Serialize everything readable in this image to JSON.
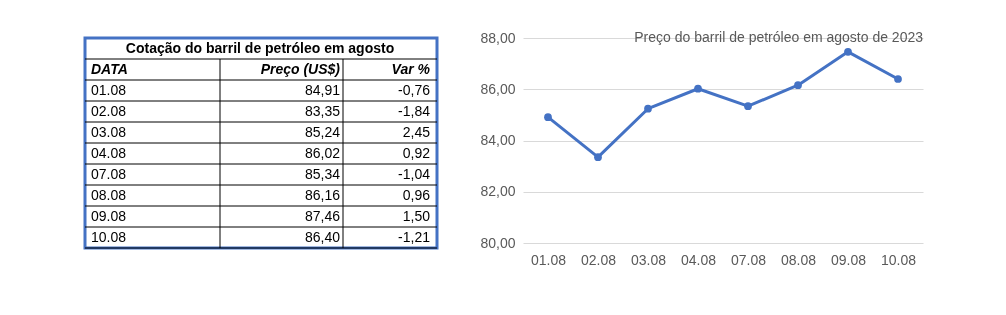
{
  "chart_data": [
    {
      "type": "other",
      "title": "Cotação do barril de petróleo em agosto",
      "xlabel": "DATA",
      "categories": [
        "01.08",
        "02.08",
        "03.08",
        "04.08",
        "07.08",
        "08.08",
        "09.08",
        "10.08"
      ],
      "series": [
        {
          "name": "Preço (US$)",
          "values": [
            84.91,
            83.35,
            85.24,
            86.02,
            85.34,
            86.16,
            87.46,
            86.4
          ],
          "value_labels": [
            "84,91",
            "83,35",
            "85,24",
            "86,02",
            "85,34",
            "86,16",
            "87,46",
            "86,40"
          ]
        },
        {
          "name": "Var %",
          "values": [
            -0.76,
            -1.84,
            2.45,
            0.92,
            -1.04,
            0.96,
            1.5,
            -1.21
          ],
          "value_labels": [
            "-0,76",
            "-1,84",
            "2,45",
            "0,92",
            "-1,04",
            "0,96",
            "1,50",
            "-1,21"
          ]
        }
      ]
    },
    {
      "type": "line",
      "title": "Preço do barril de petróleo em agosto de 2023",
      "categories": [
        "01.08",
        "02.08",
        "03.08",
        "04.08",
        "07.08",
        "08.08",
        "09.08",
        "10.08"
      ],
      "series": [
        {
          "color": "#4472c4",
          "values": [
            84.91,
            83.35,
            85.24,
            86.02,
            85.34,
            86.16,
            87.46,
            86.4
          ]
        }
      ],
      "ylim": [
        80,
        88
      ],
      "yticks": [
        {
          "value": 80,
          "label": "80,00"
        },
        {
          "value": 82,
          "label": "82,00"
        },
        {
          "value": 84,
          "label": "84,00"
        },
        {
          "value": 86,
          "label": "86,00"
        },
        {
          "value": 88,
          "label": "88,00"
        }
      ],
      "grid": "y",
      "marker": "circle",
      "line_style": "solid"
    }
  ]
}
